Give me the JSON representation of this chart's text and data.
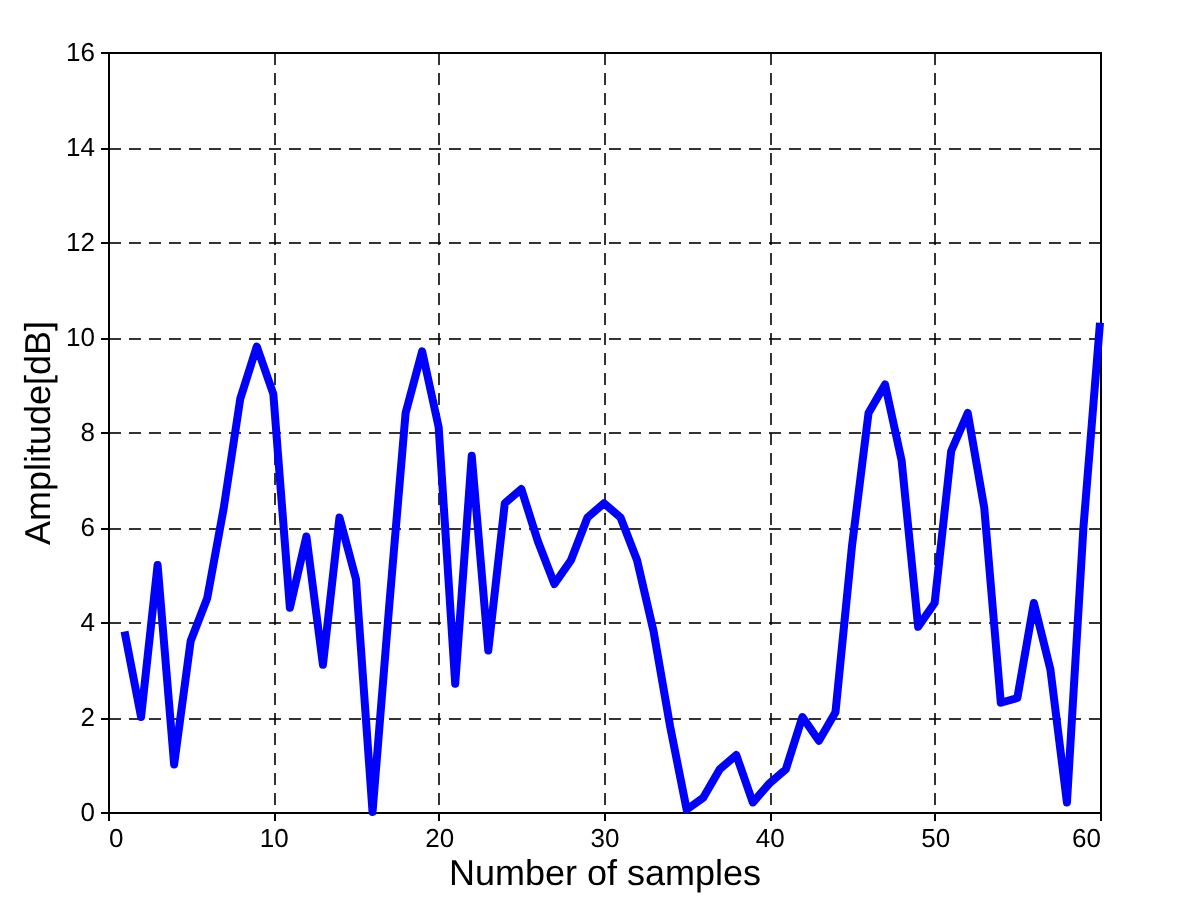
{
  "chart_data": {
    "type": "line",
    "xlabel": "Number of samples",
    "ylabel": "Amplitude[dB]",
    "x": [
      1,
      2,
      3,
      4,
      5,
      6,
      7,
      8,
      9,
      10,
      11,
      12,
      13,
      14,
      15,
      16,
      17,
      18,
      19,
      20,
      21,
      22,
      23,
      24,
      25,
      26,
      27,
      28,
      29,
      30,
      31,
      32,
      33,
      34,
      35,
      36,
      37,
      38,
      39,
      40,
      41,
      42,
      43,
      44,
      45,
      46,
      47,
      48,
      49,
      50,
      51,
      52,
      53,
      54,
      55,
      56,
      57,
      58,
      59,
      60
    ],
    "series": [
      {
        "color": "#0000ff",
        "values": [
          3.8,
          2.0,
          5.2,
          1.0,
          3.6,
          4.5,
          6.4,
          8.7,
          9.8,
          8.8,
          4.3,
          5.8,
          3.1,
          6.2,
          4.9,
          0,
          4.3,
          8.4,
          9.7,
          8.1,
          2.7,
          7.5,
          3.4,
          6.5,
          6.8,
          5.7,
          4.8,
          5.3,
          6.2,
          6.5,
          6.2,
          5.3,
          3.8,
          1.8,
          0.05,
          0.3,
          0.9,
          1.2,
          0.2,
          0.6,
          0.9,
          2.0,
          1.5,
          2.1,
          5.6,
          8.4,
          9.0,
          7.4,
          3.9,
          4.4,
          7.6,
          8.4,
          6.4,
          2.3,
          2.4,
          4.4,
          3.0,
          0.2,
          6.0,
          10.3
        ]
      }
    ],
    "xlim": [
      0,
      60
    ],
    "ylim": [
      0,
      16
    ],
    "xticks": [
      0,
      10,
      20,
      30,
      40,
      50,
      60
    ],
    "yticks": [
      0,
      2,
      4,
      6,
      8,
      10,
      12,
      14,
      16
    ],
    "grid": true,
    "line_style": "solid",
    "marker": "none"
  }
}
